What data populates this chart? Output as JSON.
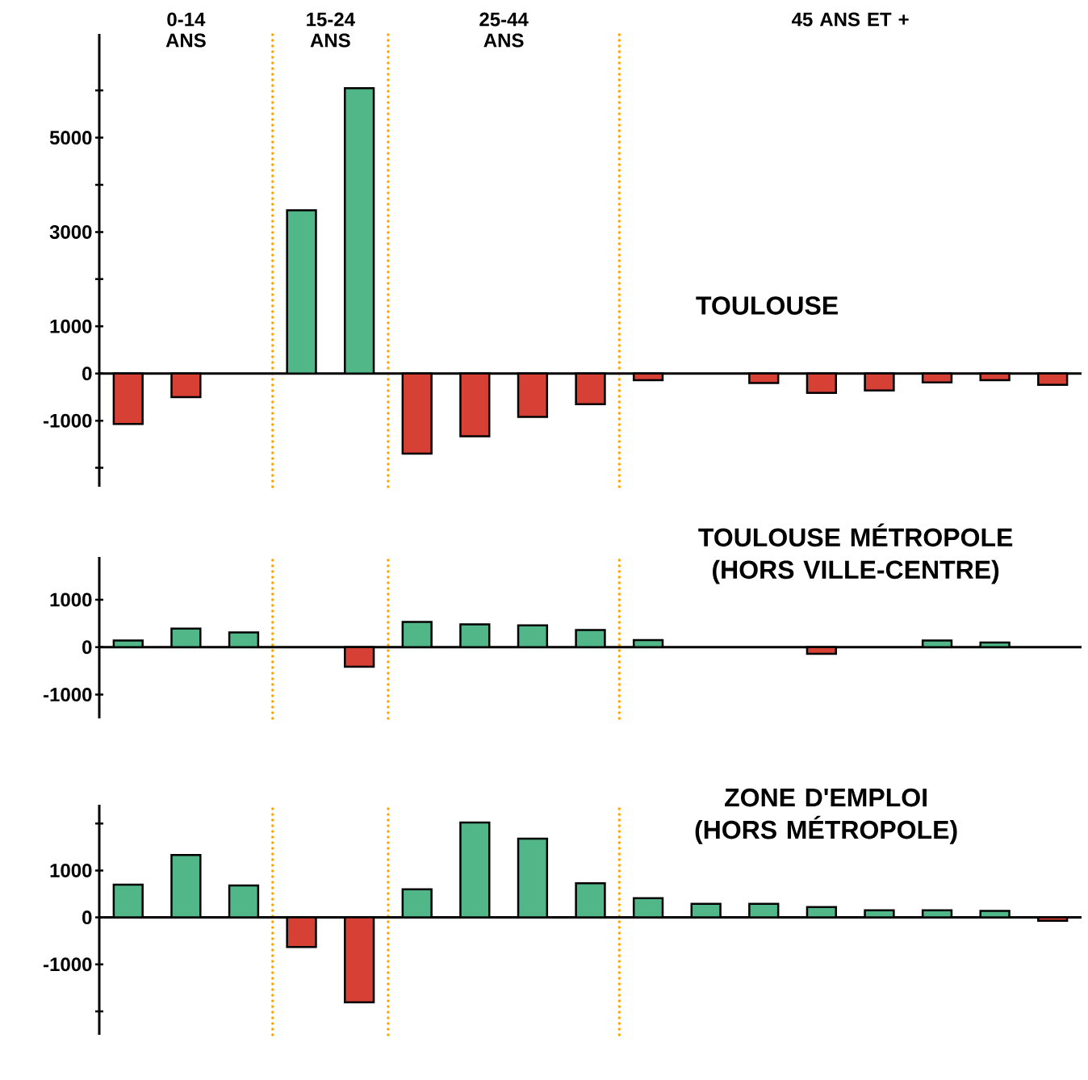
{
  "chart_data": [
    {
      "type": "bar",
      "title": "TOULOUSE",
      "categories": [
        null,
        null,
        null,
        null,
        null,
        null,
        null,
        null,
        null,
        null,
        null,
        null,
        null,
        null,
        null,
        null,
        null
      ],
      "values": [
        -1070,
        -500,
        null,
        3460,
        6050,
        -1700,
        -1330,
        -920,
        -650,
        -140,
        null,
        -200,
        -410,
        -360,
        -190,
        -140,
        -240
      ],
      "colors": [
        "#d64035",
        "#d64035",
        "#d64035",
        "#52b788",
        "#52b788",
        "#d64035",
        "#d64035",
        "#d64035",
        "#d64035",
        "#d64035",
        "#d64035",
        "#d64035",
        "#d64035",
        "#d64035",
        "#d64035",
        "#d64035",
        "#d64035"
      ],
      "ylim": [
        -2400,
        7200
      ],
      "yticks": [
        {
          "value": -2000,
          "label": null
        },
        {
          "value": -1000,
          "label": "-1000"
        },
        0,
        1000,
        {
          "value": 2000,
          "label": null
        },
        3000,
        {
          "value": 4000,
          "label": null
        },
        5000,
        {
          "value": 6000,
          "label": null
        }
      ],
      "tick_labels": "y",
      "annotations": [
        "0-14 ANS",
        "15-24 ANS",
        "25-44 ANS",
        "45 ANS ET +"
      ]
    },
    {
      "type": "bar",
      "title": "TOULOUSE MÉTROPOLE (HORS VILLE-CENTRE)",
      "categories": [
        null,
        null,
        null,
        null,
        null,
        null,
        null,
        null,
        null,
        null,
        null,
        null,
        null,
        null,
        null,
        null,
        null
      ],
      "values": [
        140,
        390,
        310,
        null,
        -410,
        530,
        480,
        460,
        360,
        150,
        null,
        null,
        -140,
        null,
        140,
        100,
        null
      ],
      "colors": [
        "#52b788",
        "#52b788",
        "#52b788",
        "#52b788",
        "#d64035",
        "#52b788",
        "#52b788",
        "#52b788",
        "#52b788",
        "#52b788",
        "#52b788",
        "#52b788",
        "#d64035",
        "#52b788",
        "#52b788",
        "#52b788",
        "#52b788"
      ],
      "ylim": [
        -1500,
        1900
      ],
      "yticks": [
        {
          "value": -1000,
          "label": "-1000"
        },
        0,
        1000
      ],
      "tick_labels": "y"
    },
    {
      "type": "bar",
      "title": "ZONE D'EMPLOI (HORS MÉTROPOLE)",
      "categories": [
        null,
        null,
        null,
        null,
        null,
        null,
        null,
        null,
        null,
        null,
        null,
        null,
        null,
        null,
        null,
        null,
        null
      ],
      "values": [
        700,
        1330,
        680,
        -630,
        -1810,
        600,
        2020,
        1680,
        730,
        410,
        290,
        290,
        220,
        150,
        150,
        140,
        -70
      ],
      "colors": [
        "#52b788",
        "#52b788",
        "#52b788",
        "#d64035",
        "#d64035",
        "#52b788",
        "#52b788",
        "#52b788",
        "#52b788",
        "#52b788",
        "#52b788",
        "#52b788",
        "#52b788",
        "#52b788",
        "#52b788",
        "#52b788",
        "#d64035"
      ],
      "ylim": [
        -2500,
        2400
      ],
      "yticks": [
        {
          "value": -2000,
          "label": null
        },
        {
          "value": -1000,
          "label": "-1000"
        },
        0,
        1000,
        {
          "value": 2000,
          "label": null
        }
      ],
      "tick_labels": "y"
    }
  ]
}
